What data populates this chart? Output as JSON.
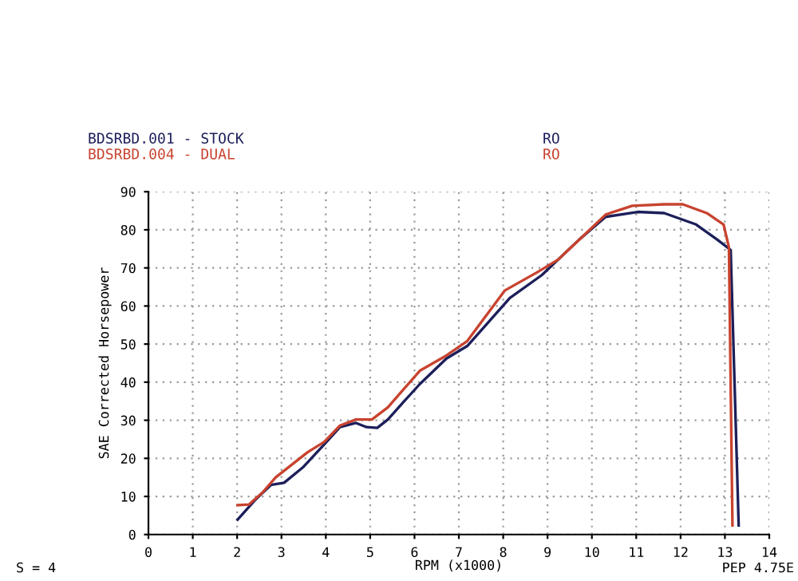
{
  "chart_data": {
    "type": "line",
    "xlabel": "RPM (x1000)",
    "ylabel": "SAE Corrected Horsepower",
    "annotations": [
      "RO",
      "RO",
      "S = 4",
      "PEP 4.75E"
    ],
    "xlim": [
      0,
      14
    ],
    "xticks": [
      0,
      1,
      2,
      3,
      4,
      5,
      6,
      7,
      8,
      9,
      10,
      11,
      12,
      13,
      14
    ],
    "ylim": [
      0,
      90
    ],
    "yticks": [
      0,
      10,
      20,
      30,
      40,
      50,
      60,
      70,
      80,
      90
    ],
    "grid": true,
    "legend": "top left",
    "marker": "none",
    "line_style": "solid",
    "series": [
      {
        "name": "BDSRBD.001 - STOCK",
        "color": "#1c1f5a",
        "x": [
          2.01,
          2.4,
          2.76,
          3.06,
          3.48,
          3.96,
          4.32,
          4.68,
          4.92,
          5.16,
          5.4,
          5.76,
          6.12,
          6.72,
          7.19,
          8.15,
          8.87,
          9.71,
          10.31,
          11.03,
          11.63,
          12.35,
          12.83,
          13.13,
          13.31
        ],
        "values": [
          3.9,
          9.0,
          13.0,
          13.6,
          17.6,
          23.6,
          28.2,
          29.3,
          28.2,
          28.0,
          30.2,
          34.9,
          39.5,
          46.2,
          49.5,
          62.1,
          68.1,
          77.4,
          83.4,
          84.7,
          84.4,
          81.4,
          77.4,
          74.7,
          2.4
        ]
      },
      {
        "name": "BDSRBD.004 - DUAL",
        "color": "#c8432f",
        "x": [
          2.01,
          2.27,
          2.57,
          2.87,
          3.23,
          3.59,
          3.96,
          4.32,
          4.68,
          5.04,
          5.4,
          5.76,
          6.12,
          6.72,
          7.19,
          8.04,
          8.76,
          9.23,
          9.83,
          10.31,
          10.91,
          11.63,
          12.05,
          12.59,
          12.97,
          13.09,
          13.17
        ],
        "values": [
          7.7,
          7.9,
          11.0,
          15.0,
          18.3,
          21.6,
          24.3,
          28.6,
          30.2,
          30.2,
          33.4,
          38.2,
          43.0,
          47.0,
          50.8,
          64.1,
          68.8,
          72.1,
          78.7,
          84.0,
          86.3,
          86.7,
          86.7,
          84.4,
          81.4,
          75.4,
          2.4
        ]
      }
    ]
  }
}
